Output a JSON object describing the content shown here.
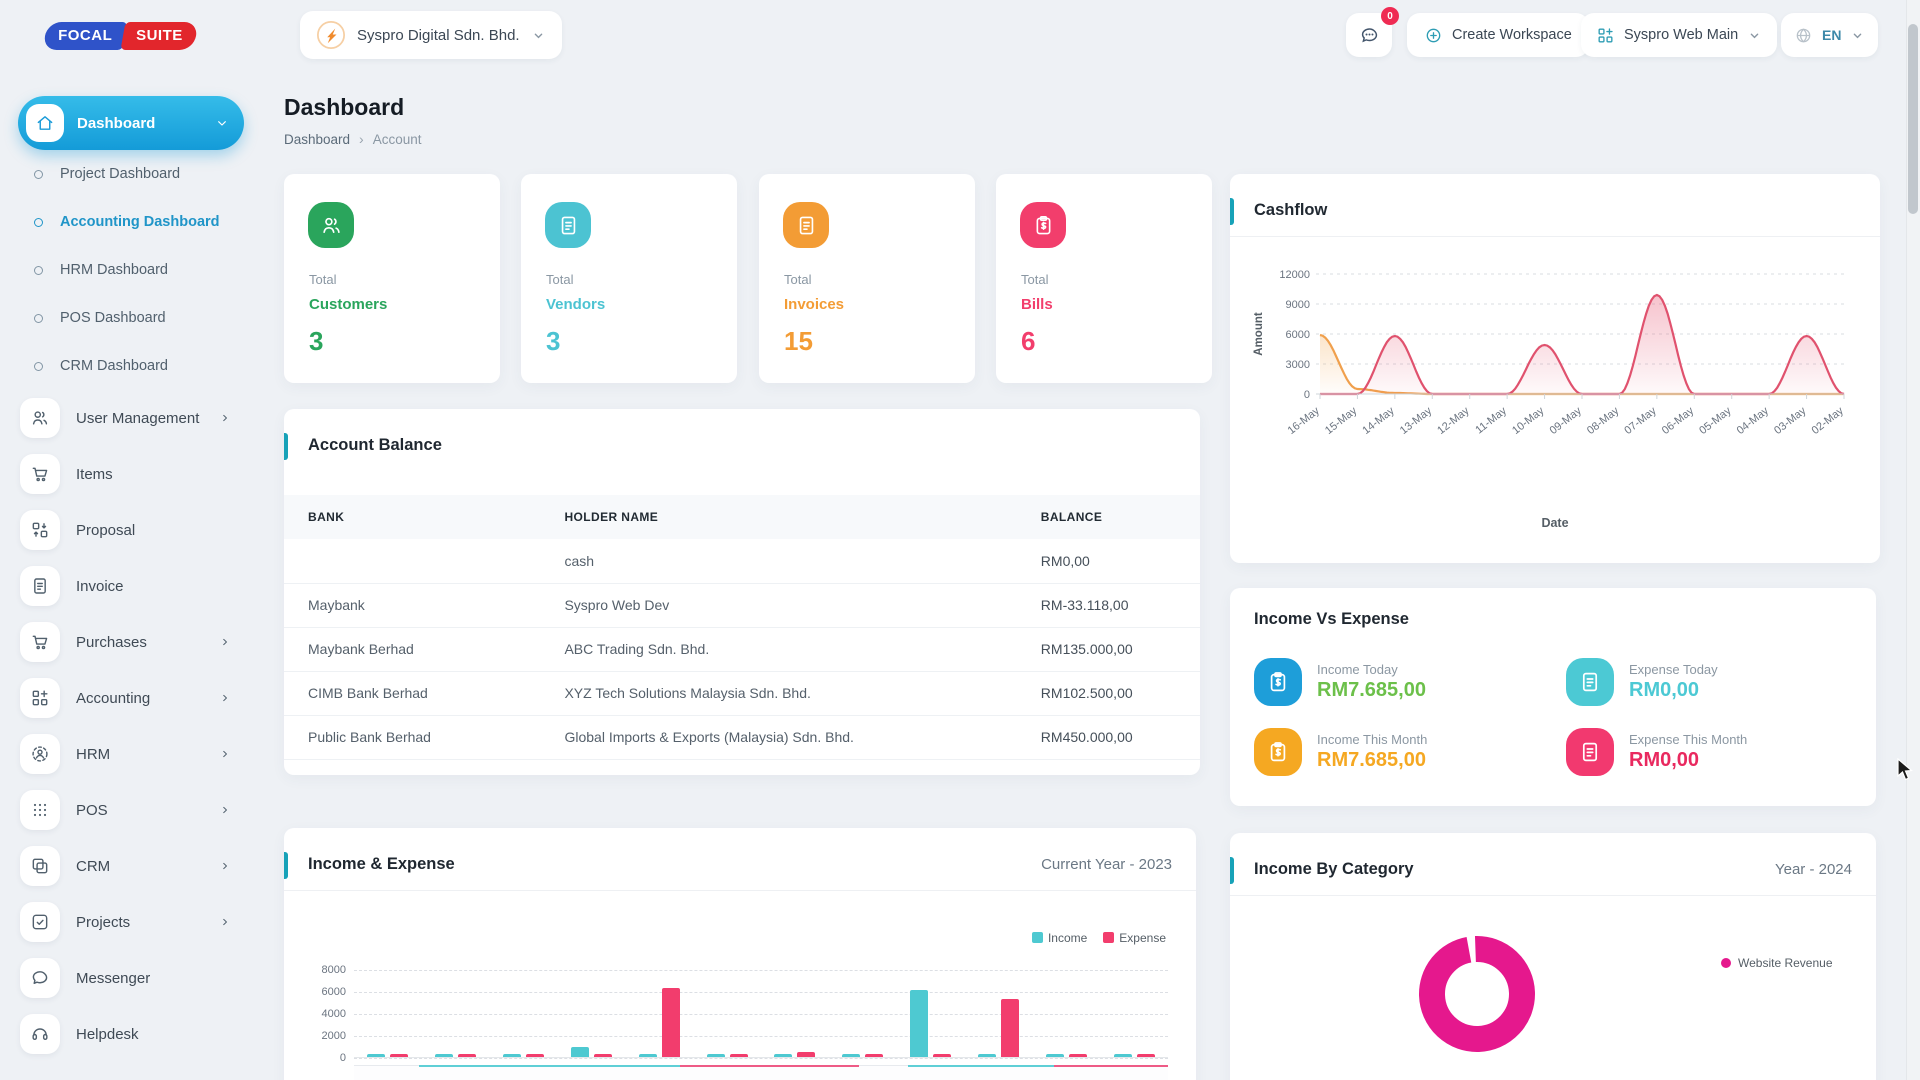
{
  "brand": {
    "name_left": "FOCAL",
    "name_right": "SUITE"
  },
  "topbar": {
    "workspace_name": "Syspro Digital Sdn. Bhd.",
    "chat_badge": "0",
    "create_workspace_label": "Create Workspace",
    "app_selector_label": "Syspro Web Main",
    "language_label": "EN"
  },
  "sidebar": {
    "items": [
      {
        "label": "Dashboard",
        "icon": "home",
        "active": true,
        "expanded": true,
        "children": [
          {
            "label": "Project Dashboard",
            "active": false
          },
          {
            "label": "Accounting Dashboard",
            "active": true
          },
          {
            "label": "HRM Dashboard",
            "active": false
          },
          {
            "label": "POS Dashboard",
            "active": false
          },
          {
            "label": "CRM Dashboard",
            "active": false
          }
        ]
      },
      {
        "label": "User Management",
        "icon": "users",
        "chevron": true
      },
      {
        "label": "Items",
        "icon": "cart",
        "chevron": false
      },
      {
        "label": "Proposal",
        "icon": "swap",
        "chevron": false
      },
      {
        "label": "Invoice",
        "icon": "doc",
        "chevron": false
      },
      {
        "label": "Purchases",
        "icon": "cart",
        "chevron": true
      },
      {
        "label": "Accounting",
        "icon": "gridplus",
        "chevron": true
      },
      {
        "label": "HRM",
        "icon": "persontarget",
        "chevron": true
      },
      {
        "label": "POS",
        "icon": "dotsgrid",
        "chevron": true
      },
      {
        "label": "CRM",
        "icon": "copy",
        "chevron": true
      },
      {
        "label": "Projects",
        "icon": "checksquare",
        "chevron": true
      },
      {
        "label": "Messenger",
        "icon": "chat",
        "chevron": false
      },
      {
        "label": "Helpdesk",
        "icon": "headset",
        "chevron": false
      }
    ]
  },
  "page": {
    "title": "Dashboard",
    "breadcrumb": [
      "Dashboard",
      "Account"
    ]
  },
  "stats": [
    {
      "prefix": "Total",
      "label": "Customers",
      "value": "3",
      "color": "#2aa55c",
      "icon": "users"
    },
    {
      "prefix": "Total",
      "label": "Vendors",
      "value": "3",
      "color": "#4cc3d2",
      "icon": "doc"
    },
    {
      "prefix": "Total",
      "label": "Invoices",
      "value": "15",
      "color": "#f39c35",
      "icon": "doc"
    },
    {
      "prefix": "Total",
      "label": "Bills",
      "value": "6",
      "color": "#f23e6c",
      "icon": "clipboard"
    }
  ],
  "account_balance": {
    "title": "Account Balance",
    "columns": [
      "BANK",
      "HOLDER NAME",
      "BALANCE"
    ],
    "rows": [
      {
        "bank": "",
        "holder": "cash",
        "balance": "RM0,00"
      },
      {
        "bank": "Maybank",
        "holder": "Syspro Web Dev",
        "balance": "RM-33.118,00"
      },
      {
        "bank": "Maybank Berhad",
        "holder": "ABC Trading Sdn. Bhd.",
        "balance": "RM135.000,00"
      },
      {
        "bank": "CIMB Bank Berhad",
        "holder": "XYZ Tech Solutions Malaysia Sdn. Bhd.",
        "balance": "RM102.500,00"
      },
      {
        "bank": "Public Bank Berhad",
        "holder": "Global Imports & Exports (Malaysia) Sdn. Bhd.",
        "balance": "RM450.000,00"
      }
    ]
  },
  "income_vs_expense": {
    "title": "Income Vs Expense",
    "items": [
      {
        "label": "Income Today",
        "value": "RM7.685,00",
        "icon": "clipboard",
        "icon_bg": "#1e9ed9",
        "value_color": "#6cc04a"
      },
      {
        "label": "Expense Today",
        "value": "RM0,00",
        "icon": "doc",
        "icon_bg": "#4cc9d4",
        "value_color": "#4cc9d4"
      },
      {
        "label": "Income This Month",
        "value": "RM7.685,00",
        "icon": "clipboard",
        "icon_bg": "#f5a822",
        "value_color": "#f5a822"
      },
      {
        "label": "Expense This Month",
        "value": "RM0,00",
        "icon": "doc",
        "icon_bg": "#f2396f",
        "value_color": "#e9295f"
      }
    ]
  },
  "chart_data": [
    {
      "id": "cashflow",
      "type": "area",
      "title": "Cashflow",
      "xlabel": "Date",
      "ylabel": "Amount",
      "ylim": [
        0,
        12000
      ],
      "yticks": [
        0,
        3000,
        6000,
        9000,
        12000
      ],
      "grid": "dashed",
      "x": [
        "16-May",
        "15-May",
        "14-May",
        "13-May",
        "12-May",
        "11-May",
        "10-May",
        "09-May",
        "08-May",
        "07-May",
        "06-May",
        "05-May",
        "04-May",
        "03-May",
        "02-May"
      ],
      "series": [
        {
          "name": "series-orange",
          "color": "#f0a04d",
          "fill": "rgba(243,167,80,0.30)",
          "values": [
            5900,
            500,
            100,
            0,
            0,
            0,
            0,
            0,
            0,
            0,
            0,
            0,
            0,
            0,
            0
          ]
        },
        {
          "name": "series-pink",
          "color": "#e0526e",
          "fill": "rgba(230,83,112,0.35)",
          "values": [
            0,
            0,
            5800,
            0,
            0,
            0,
            4900,
            0,
            0,
            9900,
            0,
            0,
            0,
            5800,
            0
          ]
        }
      ]
    },
    {
      "id": "income_expense",
      "type": "bar",
      "title": "Income & Expense",
      "subtitle": "Current Year - 2023",
      "ylim": [
        0,
        8000
      ],
      "yticks": [
        0,
        2000,
        4000,
        6000,
        8000
      ],
      "grid": "dashed",
      "x_labels_visible": false,
      "groups": 12,
      "legend_position": "top-right",
      "series": [
        {
          "name": "Income",
          "color": "#4ec9d1",
          "values": [
            250,
            150,
            150,
            900,
            150,
            150,
            250,
            150,
            6100,
            150,
            150,
            150
          ]
        },
        {
          "name": "Expense",
          "color": "#f23d6d",
          "values": [
            150,
            150,
            150,
            120,
            6250,
            150,
            450,
            150,
            150,
            5300,
            180,
            180
          ]
        }
      ]
    },
    {
      "id": "income_by_category",
      "type": "donut",
      "title": "Income By Category",
      "subtitle": "Year - 2024",
      "legend_position": "right",
      "slices": [
        {
          "label": "Website Revenue",
          "value": 100,
          "color": "#e5188d"
        }
      ]
    }
  ]
}
